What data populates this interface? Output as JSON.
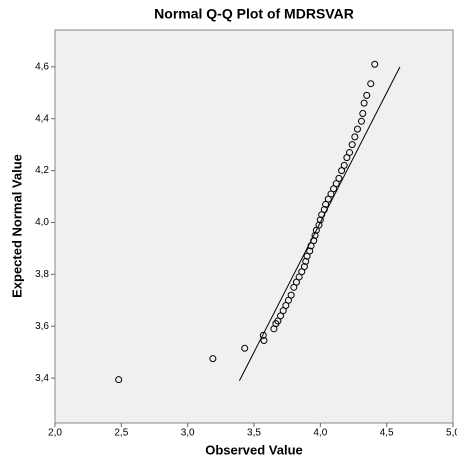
{
  "chart_data": {
    "type": "scatter",
    "title": "Normal Q-Q Plot of MDRSVAR",
    "xlabel": "Observed Value",
    "ylabel": "Expected Normal Value",
    "xlim": [
      2,
      5
    ],
    "ylim": [
      3.227,
      4.742
    ],
    "xticks": [
      {
        "value": 2,
        "label": "2,0"
      },
      {
        "value": 2.5,
        "label": "2,5"
      },
      {
        "value": 3,
        "label": "3,0"
      },
      {
        "value": 3.5,
        "label": "3,5"
      },
      {
        "value": 4,
        "label": "4,0"
      },
      {
        "value": 4.5,
        "label": "4,5"
      },
      {
        "value": 5,
        "label": "5,0"
      }
    ],
    "yticks": [
      {
        "value": 3.4,
        "label": "3,4"
      },
      {
        "value": 3.6,
        "label": "3,6"
      },
      {
        "value": 3.8,
        "label": "3,8"
      },
      {
        "value": 4,
        "label": "4,0"
      },
      {
        "value": 4.2,
        "label": "4,2"
      },
      {
        "value": 4.4,
        "label": "4,4"
      },
      {
        "value": 4.6,
        "label": "4,6"
      }
    ],
    "series": [
      {
        "type": "scatter",
        "color": "#000000",
        "x": [
          2.48,
          3.19,
          3.43,
          3.57,
          3.575,
          3.65,
          3.665,
          3.68,
          3.7,
          3.72,
          3.74,
          3.76,
          3.78,
          3.8,
          3.82,
          3.84,
          3.86,
          3.88,
          3.89,
          3.9,
          3.92,
          3.93,
          3.95,
          3.96,
          3.97,
          3.99,
          4.0,
          4.01,
          4.03,
          4.04,
          4.06,
          4.08,
          4.1,
          4.12,
          4.14,
          4.16,
          4.18,
          4.2,
          4.22,
          4.24,
          4.26,
          4.28,
          4.31,
          4.32,
          4.33,
          4.35,
          4.38,
          4.41
        ],
        "values": [
          3.394,
          3.475,
          3.515,
          3.565,
          3.545,
          3.59,
          3.61,
          3.62,
          3.64,
          3.66,
          3.68,
          3.7,
          3.72,
          3.75,
          3.77,
          3.79,
          3.81,
          3.83,
          3.85,
          3.87,
          3.89,
          3.91,
          3.93,
          3.95,
          3.97,
          3.99,
          4.01,
          4.03,
          4.05,
          4.07,
          4.09,
          4.11,
          4.13,
          4.15,
          4.17,
          4.2,
          4.22,
          4.25,
          4.27,
          4.3,
          4.33,
          4.36,
          4.39,
          4.42,
          4.46,
          4.49,
          4.535,
          4.61
        ]
      },
      {
        "type": "line",
        "color": "#000000",
        "x": [
          3.39,
          4.6
        ],
        "values": [
          3.39,
          4.6
        ]
      }
    ]
  }
}
